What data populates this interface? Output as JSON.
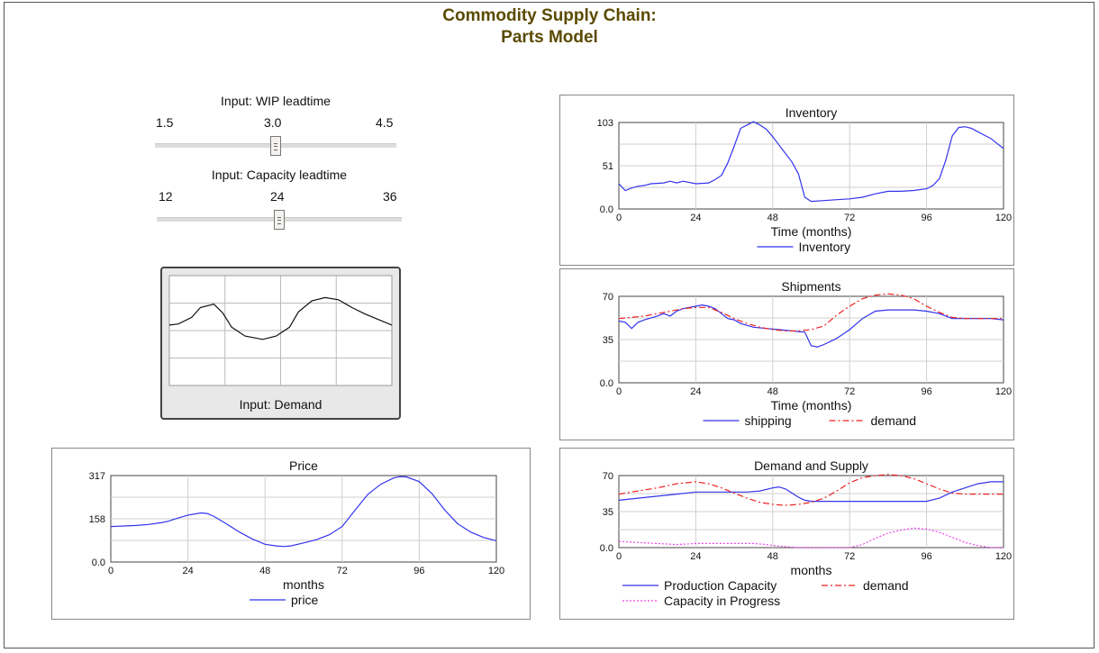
{
  "header": {
    "title_line1": "Commodity Supply Chain:",
    "title_line2": "Parts Model"
  },
  "sliders": [
    {
      "label": "Input: WIP leadtime",
      "min": "1.5",
      "mid": "3.0",
      "max": "4.5",
      "value": 3.0
    },
    {
      "label": "Input: Capacity leadtime",
      "min": "12",
      "mid": "24",
      "max": "36",
      "value": 24
    }
  ],
  "demand_input": {
    "label": "Input: Demand",
    "curve": [
      [
        0,
        0.55
      ],
      [
        0.04,
        0.56
      ],
      [
        0.1,
        0.62
      ],
      [
        0.14,
        0.71
      ],
      [
        0.2,
        0.74
      ],
      [
        0.24,
        0.66
      ],
      [
        0.28,
        0.53
      ],
      [
        0.34,
        0.45
      ],
      [
        0.42,
        0.42
      ],
      [
        0.48,
        0.45
      ],
      [
        0.54,
        0.53
      ],
      [
        0.58,
        0.67
      ],
      [
        0.64,
        0.77
      ],
      [
        0.7,
        0.8
      ],
      [
        0.76,
        0.78
      ],
      [
        0.82,
        0.71
      ],
      [
        0.88,
        0.65
      ],
      [
        0.94,
        0.6
      ],
      [
        1,
        0.55
      ]
    ]
  },
  "colors": {
    "series_blue": "#3333ee",
    "series_red": "#ee2222",
    "series_magenta": "#ee44ee",
    "title": "#5a4a00",
    "grid": "#cfcfcf"
  },
  "chart_data": [
    {
      "id": "inventory",
      "type": "line",
      "title": "Inventory",
      "xlabel": "Time (months)",
      "xlim": [
        0,
        120
      ],
      "ylim": [
        0,
        103
      ],
      "xticks": [
        "0",
        "24",
        "48",
        "72",
        "96",
        "120"
      ],
      "yticks": [
        "0.0",
        "51",
        "103"
      ],
      "series": [
        {
          "name": "Inventory",
          "style": "solid",
          "color": "#3333ee",
          "x": [
            0,
            2,
            4,
            6,
            8,
            10,
            14,
            16,
            18,
            20,
            24,
            28,
            30,
            32,
            34,
            36,
            38,
            40,
            42,
            44,
            46,
            48,
            50,
            52,
            54,
            56,
            58,
            60,
            64,
            68,
            72,
            76,
            80,
            84,
            88,
            92,
            96,
            98,
            100,
            102,
            104,
            106,
            108,
            110,
            112,
            114,
            116,
            118,
            120
          ],
          "y": [
            30,
            22,
            25,
            27,
            28,
            30,
            31,
            33,
            31,
            33,
            30,
            31,
            35,
            40,
            55,
            75,
            96,
            100,
            104,
            100,
            95,
            86,
            76,
            66,
            56,
            42,
            14,
            9,
            10,
            11,
            12,
            14,
            18,
            21,
            21,
            22,
            24,
            28,
            36,
            58,
            87,
            97,
            98,
            96,
            92,
            88,
            84,
            78,
            72
          ]
        }
      ]
    },
    {
      "id": "shipments",
      "type": "line",
      "title": "Shipments",
      "xlabel": "Time (months)",
      "xlim": [
        0,
        120
      ],
      "ylim": [
        0,
        70
      ],
      "xticks": [
        "0",
        "24",
        "48",
        "72",
        "96",
        "120"
      ],
      "yticks": [
        "0.0",
        "35",
        "70"
      ],
      "series": [
        {
          "name": "shipping",
          "style": "solid",
          "color": "#3333ee",
          "x": [
            0,
            2,
            4,
            6,
            8,
            12,
            14,
            16,
            18,
            20,
            24,
            26,
            28,
            30,
            32,
            34,
            36,
            38,
            42,
            46,
            50,
            54,
            58,
            60,
            62,
            64,
            68,
            72,
            76,
            80,
            84,
            88,
            92,
            96,
            100,
            104,
            108,
            112,
            116,
            120
          ],
          "y": [
            50,
            49,
            44,
            49,
            51,
            54,
            56,
            54,
            58,
            60,
            62,
            63,
            62,
            60,
            56,
            52,
            51,
            48,
            45,
            44,
            43,
            42,
            41,
            30,
            29,
            31,
            36,
            43,
            52,
            58,
            59,
            59,
            59,
            58,
            56,
            52,
            52,
            52,
            52,
            51
          ]
        },
        {
          "name": "demand",
          "style": "dashdot",
          "color": "#ee2222",
          "x": [
            0,
            4,
            8,
            12,
            16,
            20,
            24,
            28,
            32,
            36,
            40,
            44,
            48,
            52,
            56,
            60,
            64,
            68,
            72,
            76,
            80,
            84,
            88,
            92,
            96,
            100,
            104,
            108,
            112,
            116,
            120
          ],
          "y": [
            52,
            53,
            54,
            56,
            58,
            60,
            61,
            61,
            57,
            52,
            48,
            45,
            43,
            42,
            42,
            43,
            46,
            55,
            62,
            68,
            71,
            72,
            71,
            68,
            62,
            57,
            53,
            52,
            52,
            52,
            52
          ]
        }
      ]
    },
    {
      "id": "demand_supply",
      "type": "line",
      "title": "Demand and Supply",
      "xlabel": "months",
      "xlim": [
        0,
        120
      ],
      "ylim": [
        0,
        70
      ],
      "xticks": [
        "0",
        "24",
        "48",
        "72",
        "96",
        "120"
      ],
      "yticks": [
        "0.0",
        "35",
        "70"
      ],
      "series": [
        {
          "name": "Production Capacity",
          "style": "solid",
          "color": "#3333ee",
          "x": [
            0,
            6,
            12,
            18,
            24,
            30,
            36,
            40,
            44,
            48,
            50,
            52,
            54,
            56,
            58,
            60,
            64,
            72,
            80,
            88,
            96,
            100,
            104,
            108,
            112,
            116,
            120
          ],
          "y": [
            46,
            48,
            50,
            52,
            54,
            54,
            54,
            54,
            55,
            58,
            59,
            57,
            53,
            49,
            46,
            45,
            45,
            45,
            45,
            45,
            45,
            48,
            54,
            58,
            62,
            64,
            64
          ]
        },
        {
          "name": "demand",
          "style": "dashdot",
          "color": "#ee2222",
          "x": [
            0,
            6,
            12,
            18,
            24,
            28,
            32,
            36,
            40,
            44,
            48,
            52,
            56,
            60,
            64,
            68,
            72,
            76,
            80,
            84,
            88,
            92,
            96,
            100,
            104,
            108,
            112,
            116,
            120
          ],
          "y": [
            52,
            55,
            58,
            62,
            64,
            62,
            58,
            53,
            48,
            44,
            42,
            41,
            42,
            44,
            48,
            55,
            63,
            68,
            70,
            71,
            70,
            67,
            62,
            57,
            53,
            52,
            52,
            52,
            52
          ]
        },
        {
          "name": "Capacity in Progress",
          "style": "dotted",
          "color": "#ee44ee",
          "x": [
            0,
            6,
            12,
            18,
            24,
            30,
            36,
            42,
            46,
            48,
            52,
            56,
            60,
            64,
            68,
            72,
            76,
            80,
            84,
            88,
            92,
            96,
            100,
            104,
            108,
            112,
            116,
            120
          ],
          "y": [
            6,
            5,
            4,
            3,
            4,
            4,
            4,
            4,
            3,
            2,
            1,
            0,
            0,
            0,
            0,
            0,
            3,
            9,
            14,
            17,
            19,
            18,
            15,
            10,
            5,
            2,
            0,
            0
          ]
        }
      ]
    },
    {
      "id": "price",
      "type": "line",
      "title": "Price",
      "xlabel": "months",
      "xlim": [
        0,
        120
      ],
      "ylim": [
        0,
        317
      ],
      "xticks": [
        "0",
        "24",
        "48",
        "72",
        "96",
        "120"
      ],
      "yticks": [
        "0.0",
        "158",
        "317"
      ],
      "series": [
        {
          "name": "price",
          "style": "solid",
          "color": "#3333ee",
          "x": [
            0,
            4,
            8,
            12,
            16,
            18,
            20,
            24,
            28,
            30,
            32,
            36,
            40,
            44,
            48,
            52,
            54,
            56,
            60,
            64,
            68,
            72,
            76,
            80,
            84,
            88,
            90,
            92,
            96,
            100,
            104,
            108,
            112,
            116,
            120
          ],
          "y": [
            130,
            132,
            134,
            138,
            145,
            150,
            158,
            172,
            180,
            178,
            168,
            140,
            110,
            85,
            65,
            58,
            57,
            59,
            70,
            82,
            100,
            130,
            190,
            248,
            285,
            308,
            313,
            312,
            295,
            250,
            190,
            140,
            110,
            90,
            78
          ]
        }
      ]
    }
  ]
}
